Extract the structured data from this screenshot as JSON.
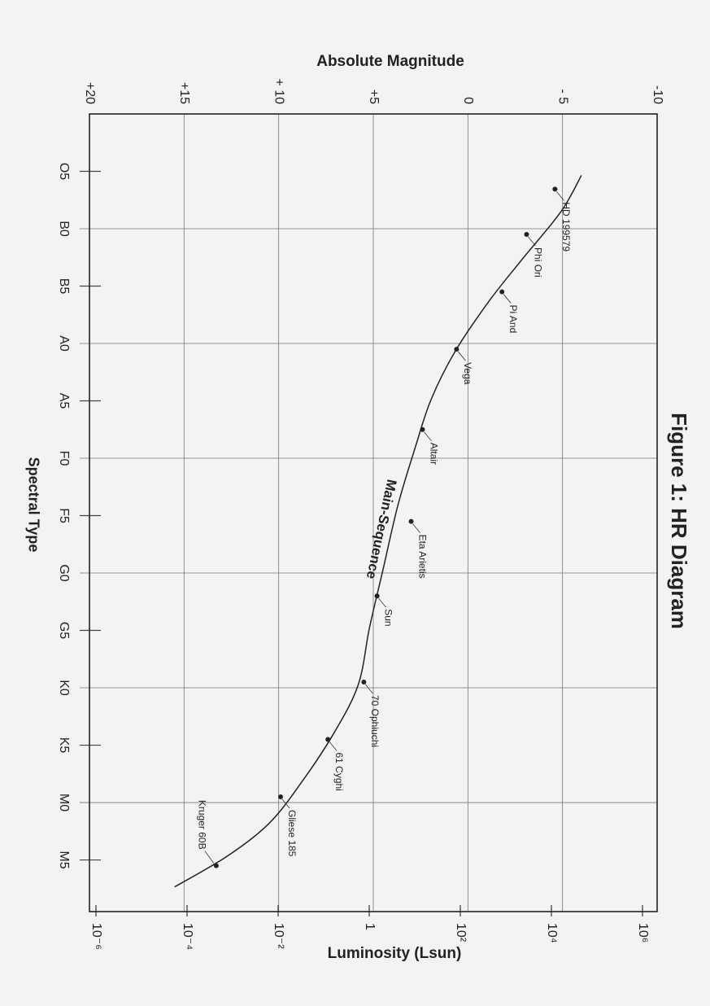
{
  "chart_data": {
    "type": "scatter",
    "title": "Figure 1:  HR Diagram",
    "xlabel": "Spectral Type",
    "ylabel": "Absolute Magnitude",
    "y2label": "Luminosity (Lsun)",
    "xlim": [
      -1,
      12.9
    ],
    "xticks": [
      {
        "value": 0,
        "label": "O5"
      },
      {
        "value": 1,
        "label": "B0"
      },
      {
        "value": 2,
        "label": "B5"
      },
      {
        "value": 3,
        "label": "A0"
      },
      {
        "value": 4,
        "label": "A5"
      },
      {
        "value": 5,
        "label": "F0"
      },
      {
        "value": 6,
        "label": "F5"
      },
      {
        "value": 7,
        "label": "G0"
      },
      {
        "value": 8,
        "label": "G5"
      },
      {
        "value": 9,
        "label": "K0"
      },
      {
        "value": 10,
        "label": "K5"
      },
      {
        "value": 11,
        "label": "M0"
      },
      {
        "value": 12,
        "label": "M5"
      }
    ],
    "ylim": [
      -10,
      20
    ],
    "yticks": [
      -10,
      {
        "value": -5,
        "label": "- 5"
      },
      0,
      {
        "value": 5,
        "label": "+5"
      },
      {
        "value": 10,
        "label": "+ 10"
      },
      {
        "value": 15,
        "label": "+15"
      },
      {
        "value": 20,
        "label": "+20"
      }
    ],
    "y2lim": [
      2100000,
      7.2e-07
    ],
    "y2log": true,
    "y2ticks": [
      {
        "value": 1000000,
        "label": "10⁶"
      },
      {
        "value": 10000,
        "label": "10⁴"
      },
      {
        "value": 100,
        "label": "10²"
      },
      1,
      {
        "value": 0.01,
        "label": "10⁻²"
      },
      {
        "value": 0.0001,
        "label": "10⁻⁴"
      },
      {
        "value": 1e-06,
        "label": "10⁻⁶"
      }
    ],
    "grid": true,
    "color": "#222222",
    "stars": {
      "labels": [
        "HD 199579",
        "Phi Ori",
        "Pi And",
        "Vega",
        "Altair",
        "Eta Arietis",
        "Sun",
        "70 Ophiuchi",
        "61 Cyghi",
        "Gliese 185",
        "Kruger 60B"
      ],
      "x": [
        0.31,
        1.1,
        2.1,
        3.1,
        4.5,
        6.1,
        7.4,
        8.9,
        9.9,
        10.9,
        12.1
      ],
      "values": [
        -4.6,
        -3.1,
        -1.8,
        0.6,
        2.4,
        3.0,
        4.8,
        5.5,
        7.4,
        9.9,
        13.3
      ]
    },
    "curve": {
      "name": "Main-Sequence",
      "x": [
        0.07,
        0.71,
        1.56,
        2.27,
        3.13,
        3.98,
        4.83,
        5.82,
        6.96,
        7.95,
        8.95,
        9.8,
        10.65,
        11.36,
        11.93,
        12.47
      ],
      "values": [
        -6.0,
        -4.9,
        -2.8,
        -1.1,
        0.66,
        1.95,
        2.8,
        3.7,
        4.5,
        5.2,
        5.8,
        7.1,
        8.8,
        10.5,
        12.7,
        15.5
      ]
    }
  }
}
